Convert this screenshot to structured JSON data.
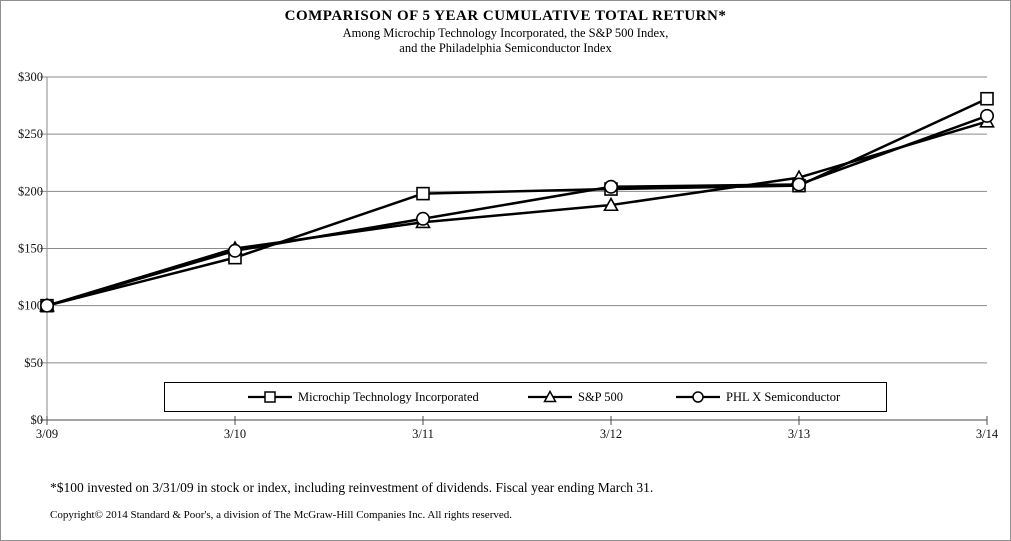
{
  "figure": {
    "title": "COMPARISON OF 5 YEAR CUMULATIVE  TOTAL RETURN*",
    "subtitle_line1": "Among Microchip Technology Incorporated, the S&P 500  Index,",
    "subtitle_line2": "and the Philadelphia  Semiconductor Index"
  },
  "chart_data": {
    "type": "line",
    "x_categories": [
      "3/09",
      "3/10",
      "3/11",
      "3/12",
      "3/13",
      "3/14"
    ],
    "series": [
      {
        "name": "Microchip Technology Incorporated",
        "marker": "square",
        "values": [
          100,
          142,
          198,
          202,
          205,
          281
        ]
      },
      {
        "name": "S&P 500",
        "marker": "triangle",
        "values": [
          100,
          150,
          173,
          188,
          212,
          261
        ]
      },
      {
        "name": "PHL X Semiconductor",
        "marker": "circle",
        "values": [
          100,
          148,
          176,
          204,
          206,
          266
        ]
      }
    ],
    "ylim": [
      0,
      300
    ],
    "ytick_step": 50,
    "ytick_labels": [
      "$0",
      "$50",
      "$100",
      "$150",
      "$200",
      "$250",
      "$300"
    ],
    "xlabel": "",
    "ylabel": "",
    "grid": "horizontal",
    "legend_position": "bottom-box",
    "line_color": "#000000",
    "marker_fill": "#ffffff",
    "grid_color": "#8a8a8a",
    "axis_color": "#4a4a4a"
  },
  "legend": {
    "items": [
      {
        "label": "Microchip Technology Incorporated",
        "marker": "square"
      },
      {
        "label": "S&P 500",
        "marker": "triangle"
      },
      {
        "label": "PHL X Semiconductor",
        "marker": "circle"
      }
    ]
  },
  "footnote": "*$100  invested on 3/31/09  in stock or index,  including reinvestment of dividends.  Fiscal  year ending March 31.",
  "copyright": "Copyright© 2014 Standard & Poor's, a division of The McGraw-Hill Companies Inc. All rights reserved."
}
